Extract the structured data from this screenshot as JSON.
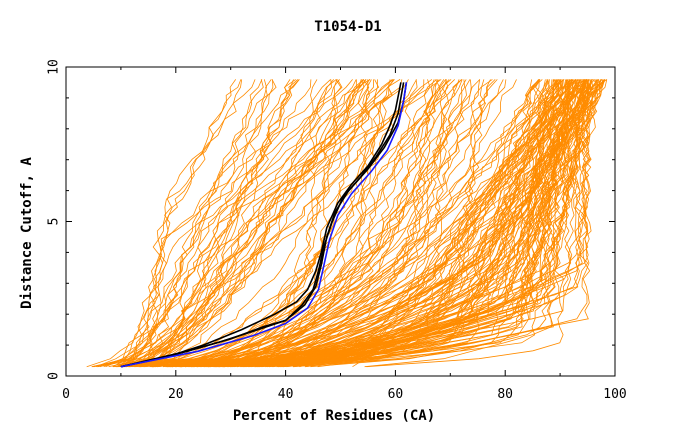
{
  "chart_data": {
    "type": "line",
    "title": "T1054-D1",
    "xlabel": "Percent of Residues (CA)",
    "ylabel": "Distance Cutoff, A",
    "xlim": [
      0,
      100
    ],
    "ylim": [
      0,
      10
    ],
    "x_ticks": [
      "0",
      "20",
      "40",
      "60",
      "80",
      "100"
    ],
    "y_ticks": [
      "0",
      "5",
      "10"
    ],
    "grid": false,
    "legend": "none",
    "colors": {
      "background_curves": "#ff8c00",
      "highlight_black": "#000000",
      "highlight_blue": "#1a1aff"
    },
    "series": [
      {
        "color": "#000000",
        "points": [
          [
            10,
            0.3
          ],
          [
            18,
            0.6
          ],
          [
            25,
            1.0
          ],
          [
            32,
            1.5
          ],
          [
            38,
            2.0
          ],
          [
            42,
            2.4
          ],
          [
            44,
            2.8
          ],
          [
            45.5,
            3.4
          ],
          [
            46.5,
            4.0
          ],
          [
            47.5,
            4.8
          ],
          [
            49.5,
            5.6
          ],
          [
            52,
            6.2
          ],
          [
            55,
            6.8
          ],
          [
            57.5,
            7.5
          ],
          [
            59,
            8.1
          ],
          [
            60,
            8.6
          ],
          [
            61,
            9.5
          ]
        ]
      },
      {
        "color": "#000000",
        "points": [
          [
            10,
            0.3
          ],
          [
            20,
            0.7
          ],
          [
            28,
            1.1
          ],
          [
            35,
            1.5
          ],
          [
            40,
            1.8
          ],
          [
            43,
            2.3
          ],
          [
            45,
            2.8
          ],
          [
            46,
            3.4
          ],
          [
            47,
            4.2
          ],
          [
            48.5,
            5.0
          ],
          [
            50.5,
            5.8
          ],
          [
            53.5,
            6.4
          ],
          [
            56.5,
            7.1
          ],
          [
            59,
            7.8
          ],
          [
            60.5,
            8.5
          ],
          [
            61.5,
            9.5
          ]
        ]
      },
      {
        "color": "#000000",
        "points": [
          [
            10,
            0.3
          ],
          [
            22,
            0.8
          ],
          [
            30,
            1.2
          ],
          [
            36,
            1.6
          ],
          [
            40,
            1.8
          ],
          [
            43.5,
            2.3
          ],
          [
            45.5,
            2.9
          ],
          [
            46.5,
            3.6
          ],
          [
            47.5,
            4.5
          ],
          [
            49,
            5.3
          ],
          [
            51.5,
            6.0
          ],
          [
            55,
            6.7
          ],
          [
            58,
            7.4
          ],
          [
            60.5,
            8.2
          ],
          [
            61.5,
            8.9
          ],
          [
            62,
            9.5
          ]
        ]
      },
      {
        "color": "#1a1aff",
        "points": [
          [
            10,
            0.3
          ],
          [
            24,
            0.8
          ],
          [
            34,
            1.3
          ],
          [
            40,
            1.7
          ],
          [
            44,
            2.2
          ],
          [
            46,
            2.8
          ],
          [
            47,
            3.6
          ],
          [
            48,
            4.4
          ],
          [
            49.5,
            5.2
          ],
          [
            52,
            5.9
          ],
          [
            55.5,
            6.6
          ],
          [
            58.5,
            7.3
          ],
          [
            60.5,
            8.1
          ],
          [
            61.5,
            8.9
          ],
          [
            62,
            9.5
          ]
        ]
      }
    ]
  }
}
